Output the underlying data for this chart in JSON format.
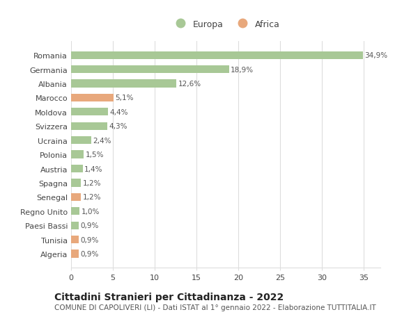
{
  "categories": [
    "Algeria",
    "Tunisia",
    "Paesi Bassi",
    "Regno Unito",
    "Senegal",
    "Spagna",
    "Austria",
    "Polonia",
    "Ucraina",
    "Svizzera",
    "Moldova",
    "Marocco",
    "Albania",
    "Germania",
    "Romania"
  ],
  "values": [
    0.9,
    0.9,
    0.9,
    1.0,
    1.2,
    1.2,
    1.4,
    1.5,
    2.4,
    4.3,
    4.4,
    5.1,
    12.6,
    18.9,
    34.9
  ],
  "labels": [
    "0,9%",
    "0,9%",
    "0,9%",
    "1,0%",
    "1,2%",
    "1,2%",
    "1,4%",
    "1,5%",
    "2,4%",
    "4,3%",
    "4,4%",
    "5,1%",
    "12,6%",
    "18,9%",
    "34,9%"
  ],
  "colors": [
    "#e8a87c",
    "#e8a87c",
    "#a8c896",
    "#a8c896",
    "#e8a87c",
    "#a8c896",
    "#a8c896",
    "#a8c896",
    "#a8c896",
    "#a8c896",
    "#a8c896",
    "#e8a87c",
    "#a8c896",
    "#a8c896",
    "#a8c896"
  ],
  "europa_color": "#a8c896",
  "africa_color": "#e8a87c",
  "title": "Cittadini Stranieri per Cittadinanza - 2022",
  "subtitle": "COMUNE DI CAPOLIVERI (LI) - Dati ISTAT al 1° gennaio 2022 - Elaborazione TUTTITALIA.IT",
  "xlim": [
    0,
    37
  ],
  "xticks": [
    0,
    5,
    10,
    15,
    20,
    25,
    30,
    35
  ],
  "background_color": "#ffffff",
  "grid_color": "#dddddd",
  "bar_height": 0.55,
  "title_fontsize": 10,
  "subtitle_fontsize": 7.5,
  "label_fontsize": 7.5,
  "tick_fontsize": 8,
  "legend_fontsize": 9
}
